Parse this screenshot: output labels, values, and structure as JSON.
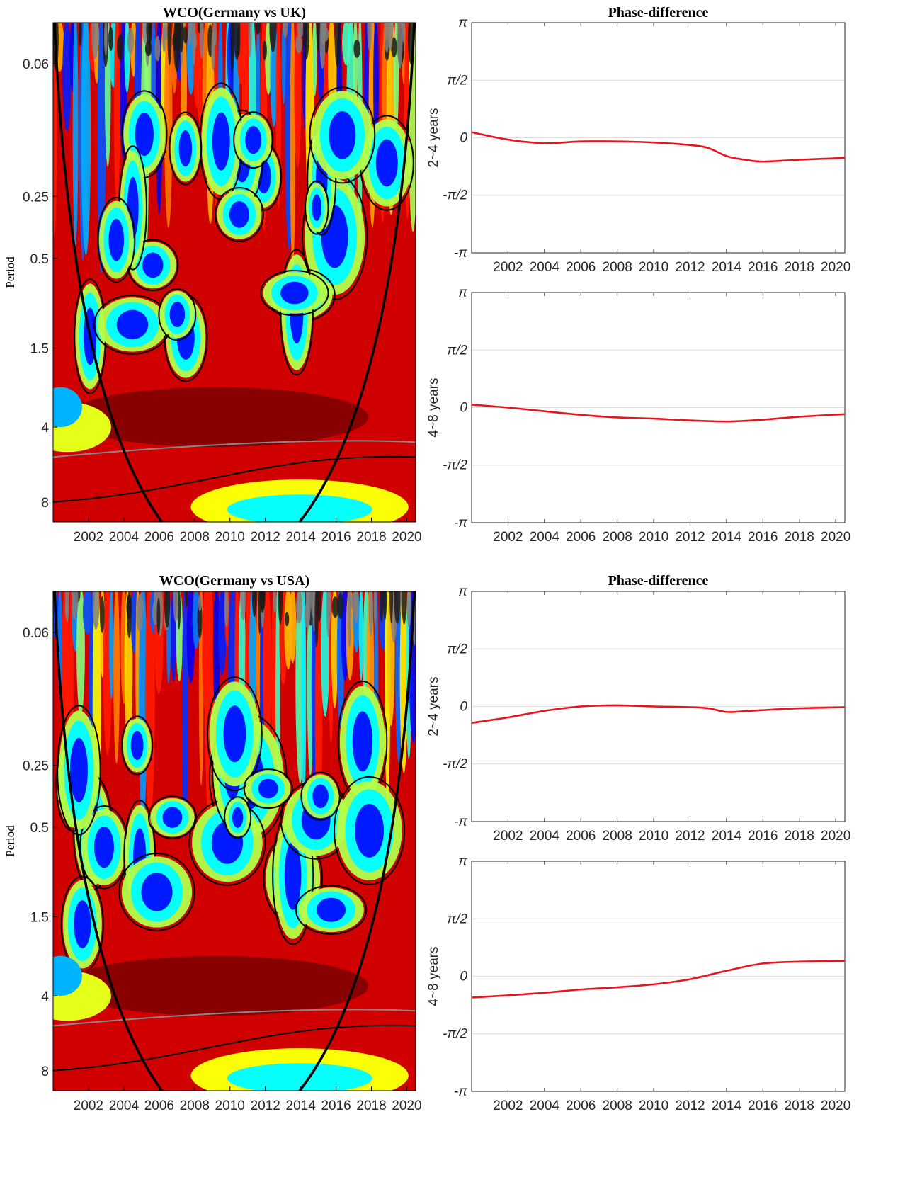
{
  "chart_data": [
    {
      "type": "heatmap",
      "title": "WCO(Germany vs UK)",
      "ylabel": "Period",
      "x_ticks": [
        "2002",
        "2004",
        "2006",
        "2008",
        "2010",
        "2012",
        "2014",
        "2016",
        "2018",
        "2020"
      ],
      "y_ticks": [
        "0.06",
        "0.25",
        "0.5",
        "1.5",
        "4",
        "8"
      ],
      "colormap": "jet",
      "contours": {
        "significance": "#000000",
        "secondary": "#888888"
      },
      "cone_of_influence": true
    },
    {
      "type": "line",
      "title": "Phase-difference",
      "ylabel": "2~4 years",
      "x_ticks": [
        "2002",
        "2004",
        "2006",
        "2008",
        "2010",
        "2012",
        "2014",
        "2016",
        "2018",
        "2020"
      ],
      "y_ticks": [
        "π",
        "π/2",
        "0",
        "-π/2",
        "-π"
      ],
      "ylim": [
        -3.1416,
        3.1416
      ],
      "xlim": [
        2000,
        2020.5
      ],
      "series": [
        {
          "color": "#e8141e",
          "points": [
            [
              2000,
              0.15
            ],
            [
              2002,
              -0.05
            ],
            [
              2004,
              -0.15
            ],
            [
              2006,
              -0.1
            ],
            [
              2008,
              -0.1
            ],
            [
              2010,
              -0.13
            ],
            [
              2012,
              -0.2
            ],
            [
              2013,
              -0.28
            ],
            [
              2014,
              -0.5
            ],
            [
              2015,
              -0.6
            ],
            [
              2016,
              -0.65
            ],
            [
              2018,
              -0.6
            ],
            [
              2020.5,
              -0.55
            ]
          ]
        }
      ]
    },
    {
      "type": "line",
      "title": "",
      "ylabel": "4~8 years",
      "x_ticks": [
        "2002",
        "2004",
        "2006",
        "2008",
        "2010",
        "2012",
        "2014",
        "2016",
        "2018",
        "2020"
      ],
      "y_ticks": [
        "π",
        "π/2",
        "0",
        "-π/2",
        "-π"
      ],
      "ylim": [
        -3.1416,
        3.1416
      ],
      "xlim": [
        2000,
        2020.5
      ],
      "series": [
        {
          "color": "#e8141e",
          "points": [
            [
              2000,
              0.08
            ],
            [
              2002,
              0.0
            ],
            [
              2004,
              -0.1
            ],
            [
              2006,
              -0.2
            ],
            [
              2008,
              -0.27
            ],
            [
              2010,
              -0.3
            ],
            [
              2012,
              -0.35
            ],
            [
              2014,
              -0.38
            ],
            [
              2016,
              -0.33
            ],
            [
              2018,
              -0.25
            ],
            [
              2020.5,
              -0.18
            ]
          ]
        }
      ]
    },
    {
      "type": "heatmap",
      "title": "WCO(Germany vs USA)",
      "ylabel": "Period",
      "x_ticks": [
        "2002",
        "2004",
        "2006",
        "2008",
        "2010",
        "2012",
        "2014",
        "2016",
        "2018",
        "2020"
      ],
      "y_ticks": [
        "0.06",
        "0.25",
        "0.5",
        "1.5",
        "4",
        "8"
      ],
      "colormap": "jet",
      "contours": {
        "significance": "#000000",
        "secondary": "#888888"
      },
      "cone_of_influence": true
    },
    {
      "type": "line",
      "title": "Phase-difference",
      "ylabel": "2~4 years",
      "x_ticks": [
        "2002",
        "2004",
        "2006",
        "2008",
        "2010",
        "2012",
        "2014",
        "2016",
        "2018",
        "2020"
      ],
      "y_ticks": [
        "π",
        "π/2",
        "0",
        "-π/2",
        "-π"
      ],
      "ylim": [
        -3.1416,
        3.1416
      ],
      "xlim": [
        2000,
        2020.5
      ],
      "series": [
        {
          "color": "#e8141e",
          "points": [
            [
              2000,
              -0.45
            ],
            [
              2002,
              -0.3
            ],
            [
              2004,
              -0.12
            ],
            [
              2006,
              0.0
            ],
            [
              2008,
              0.03
            ],
            [
              2010,
              0.0
            ],
            [
              2012,
              -0.02
            ],
            [
              2013,
              -0.05
            ],
            [
              2014,
              -0.15
            ],
            [
              2015,
              -0.13
            ],
            [
              2016,
              -0.1
            ],
            [
              2018,
              -0.05
            ],
            [
              2020.5,
              -0.02
            ]
          ]
        }
      ]
    },
    {
      "type": "line",
      "title": "",
      "ylabel": "4~8 years",
      "x_ticks": [
        "2002",
        "2004",
        "2006",
        "2008",
        "2010",
        "2012",
        "2014",
        "2016",
        "2018",
        "2020"
      ],
      "y_ticks": [
        "π",
        "π/2",
        "0",
        "-π/2",
        "-π"
      ],
      "ylim": [
        -3.1416,
        3.1416
      ],
      "xlim": [
        2000,
        2020.5
      ],
      "series": [
        {
          "color": "#e8141e",
          "points": [
            [
              2000,
              -0.58
            ],
            [
              2002,
              -0.52
            ],
            [
              2004,
              -0.45
            ],
            [
              2006,
              -0.36
            ],
            [
              2008,
              -0.3
            ],
            [
              2010,
              -0.22
            ],
            [
              2012,
              -0.08
            ],
            [
              2014,
              0.15
            ],
            [
              2016,
              0.35
            ],
            [
              2018,
              0.4
            ],
            [
              2020.5,
              0.42
            ]
          ]
        }
      ]
    }
  ]
}
